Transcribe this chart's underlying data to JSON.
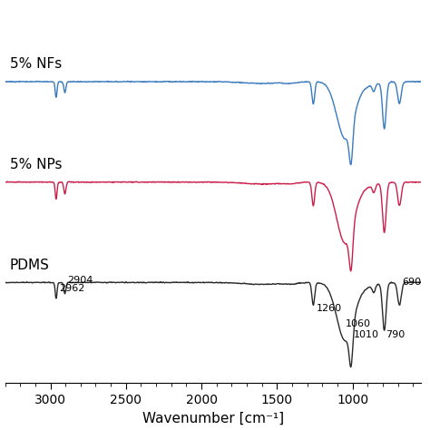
{
  "xlabel": "Wavenumber [cm⁻¹]",
  "xlim_left": 3300,
  "xlim_right": 550,
  "labels": {
    "nfs": "5% NFs",
    "nps": "5% NPs",
    "pdms": "PDMS"
  },
  "colors": {
    "nfs": "#3a7abf",
    "nps": "#cc1e4a",
    "pdms": "#2a2a2a"
  },
  "offsets": {
    "pdms": 0.0,
    "nps": 0.38,
    "nfs": 0.76
  },
  "background_color": "#ffffff",
  "annotation_fontsize": 8,
  "label_fontsize": 11
}
